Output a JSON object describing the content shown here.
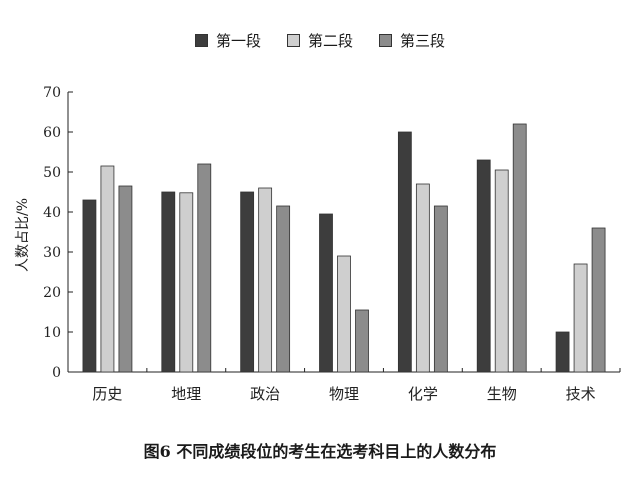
{
  "chart_data": {
    "type": "bar",
    "categories": [
      "历史",
      "地理",
      "政治",
      "物理",
      "化学",
      "生物",
      "技术"
    ],
    "series": [
      {
        "name": "第一段",
        "color": "#3d3d3d",
        "values": [
          43,
          45,
          45,
          39.5,
          60,
          53,
          10
        ]
      },
      {
        "name": "第二段",
        "color": "#cfcfcf",
        "values": [
          51.5,
          44.8,
          46,
          29,
          47,
          50.5,
          27
        ]
      },
      {
        "name": "第三段",
        "color": "#8c8c8c",
        "values": [
          46.5,
          52,
          41.5,
          15.5,
          41.5,
          62,
          36
        ]
      }
    ],
    "ylabel": "人数占比/%",
    "xlabel": "",
    "ylim": [
      0,
      70
    ],
    "yticks": [
      0,
      10,
      20,
      30,
      40,
      50,
      60,
      70
    ],
    "caption": "图6 不同成绩段位的考生在选考科目上的人数分布",
    "legend_position": "top-center",
    "grid": false
  }
}
